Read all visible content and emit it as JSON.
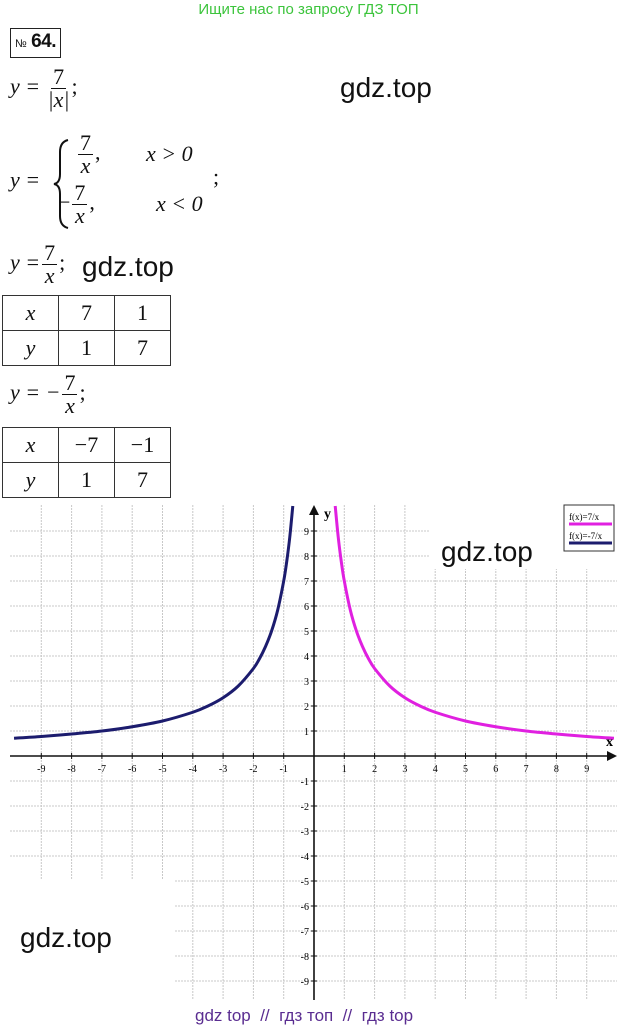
{
  "header": {
    "search_hint": "Ищите нас по запросу ГДЗ ТОП"
  },
  "problem": {
    "number_sign": "№",
    "number": "64."
  },
  "watermarks": [
    "gdz.top",
    "gdz.top",
    "gdz.top",
    "gdz.top"
  ],
  "formulas": {
    "f1": {
      "lhs": "y =",
      "num": "7",
      "den": "|x|",
      "end": ";"
    },
    "piecewise": {
      "lhs": "y =",
      "case1_num": "7",
      "case1_den": "x",
      "case1_sep": ",",
      "case1_cond": "x > 0",
      "case2_sign": "−",
      "case2_num": "7",
      "case2_den": "x",
      "case2_sep": ",",
      "case2_cond": "x < 0",
      "end": ";"
    },
    "f2": {
      "lhs": "y =",
      "num": "7",
      "den": "x",
      "end": ";"
    },
    "f3": {
      "lhs": "y = −",
      "num": "7",
      "den": "x",
      "end": ";"
    }
  },
  "table1": {
    "rows": [
      [
        "x",
        "7",
        "1"
      ],
      [
        "y",
        "1",
        "7"
      ]
    ]
  },
  "table2": {
    "rows": [
      [
        "x",
        "−7",
        "−1"
      ],
      [
        "y",
        "1",
        "7"
      ]
    ]
  },
  "footer": {
    "text": "gdz top  //  гдз топ  //  гдз top"
  },
  "chart_data": {
    "type": "line",
    "xlabel": "x",
    "ylabel": "y",
    "xlim": [
      -10,
      10
    ],
    "ylim": [
      -9.6,
      10
    ],
    "grid": true,
    "legend_placement": "top-right",
    "x_ticks": [
      "-9",
      "-8",
      "-7",
      "-6",
      "-5",
      "-4",
      "-3",
      "-2",
      "-1",
      "1",
      "2",
      "3",
      "4",
      "5",
      "6",
      "7",
      "8",
      "9"
    ],
    "y_ticks": [
      "9",
      "8",
      "7",
      "6",
      "5",
      "4",
      "3",
      "2",
      "1",
      "-1",
      "-2",
      "-3",
      "-4",
      "-5",
      "-6",
      "-7",
      "-8",
      "-9"
    ],
    "series": [
      {
        "name": "f(x)=7/x",
        "color": "#e020e0",
        "x": [
          0.7,
          0.8,
          0.9,
          1,
          1.2,
          1.4,
          1.6,
          1.8,
          2,
          2.5,
          3,
          3.5,
          4,
          5,
          6,
          7,
          8,
          9,
          9.9
        ],
        "y": [
          10,
          8.75,
          7.78,
          7,
          5.83,
          5,
          4.38,
          3.89,
          3.5,
          2.8,
          2.33,
          2,
          1.75,
          1.4,
          1.17,
          1,
          0.88,
          0.78,
          0.71
        ]
      },
      {
        "name": "f(x)=-7/x",
        "color": "#1c1c6e",
        "x": [
          -0.7,
          -0.8,
          -0.9,
          -1,
          -1.2,
          -1.4,
          -1.6,
          -1.8,
          -2,
          -2.5,
          -3,
          -3.5,
          -4,
          -5,
          -6,
          -7,
          -8,
          -9,
          -9.9
        ],
        "y": [
          10,
          8.75,
          7.78,
          7,
          5.83,
          5,
          4.38,
          3.89,
          3.5,
          2.8,
          2.33,
          2,
          1.75,
          1.4,
          1.17,
          1,
          0.88,
          0.78,
          0.71
        ]
      }
    ]
  }
}
